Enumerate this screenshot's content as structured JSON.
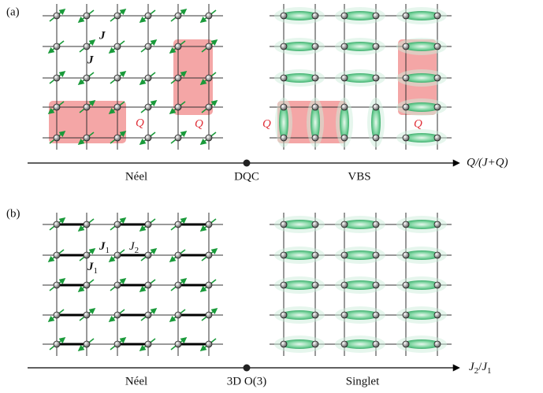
{
  "panel_a": {
    "label": "(a)",
    "bond_labels": [
      "J",
      "J"
    ],
    "plaquette_labels": [
      "Q",
      "Q",
      "Q",
      "Q"
    ],
    "axis": {
      "phases": [
        "Néel",
        "DQC",
        "VBS"
      ],
      "label": "Q/(J+Q)"
    }
  },
  "panel_b": {
    "label": "(b)",
    "bond_labels": [
      {
        "symbol": "J",
        "sub": "1"
      },
      {
        "symbol": "J",
        "sub": "2"
      },
      {
        "symbol": "J",
        "sub": "1"
      }
    ],
    "axis": {
      "phases": [
        "Néel",
        "3D O(3)",
        "Singlet"
      ],
      "label": {
        "numerator": {
          "symbol": "J",
          "sub": "2"
        },
        "separator": "/",
        "denominator": {
          "symbol": "J",
          "sub": "1"
        }
      }
    }
  }
}
